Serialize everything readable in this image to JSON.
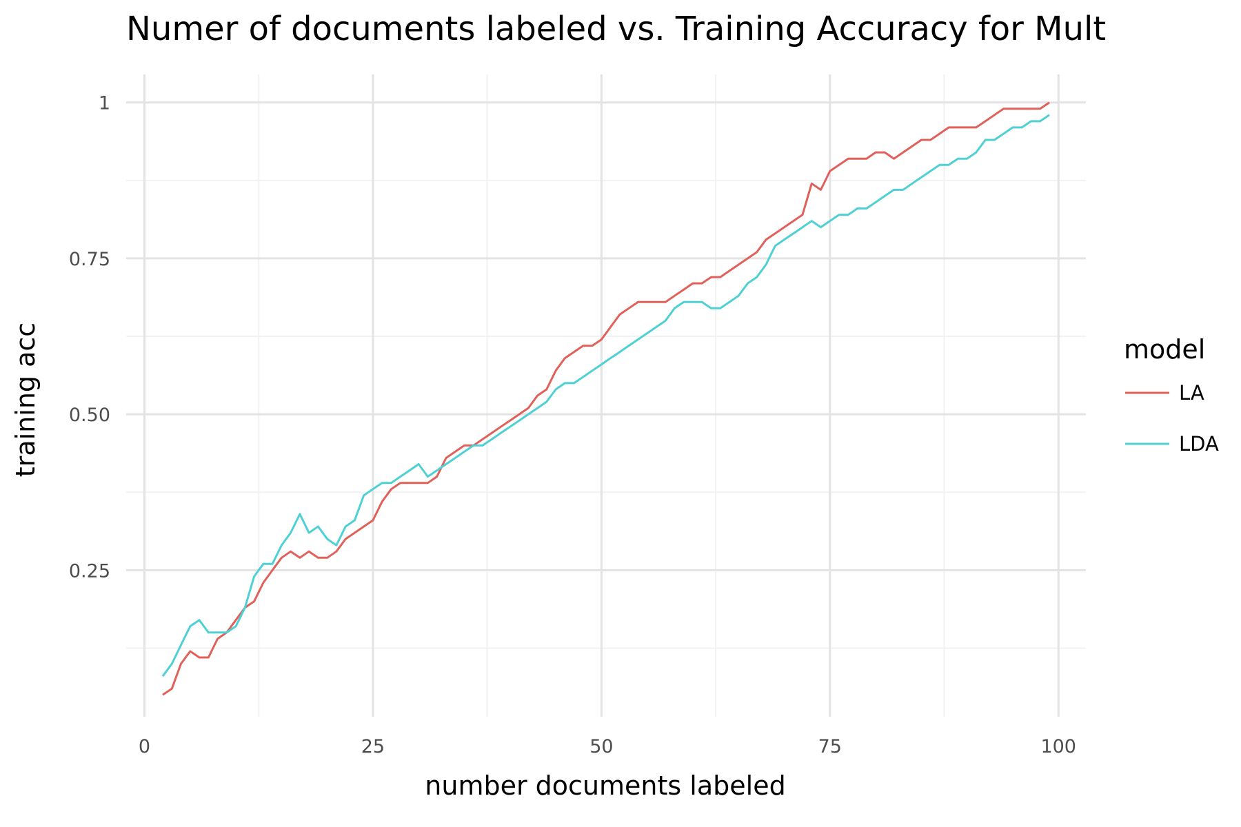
{
  "chart_data": {
    "type": "line",
    "title": "Numer of documents labeled vs. Training Accuracy for Mult",
    "xlabel": "number documents labeled",
    "ylabel": "training acc",
    "xlim": [
      -2,
      103
    ],
    "ylim": [
      0.015,
      1.045
    ],
    "x_major_ticks": [
      0,
      25,
      50,
      75,
      100
    ],
    "x_minor_ticks": [
      12.5,
      37.5,
      62.5,
      87.5
    ],
    "x_tick_labels": [
      "0",
      "25",
      "50",
      "75",
      "100"
    ],
    "y_major_ticks": [
      0.25,
      0.5,
      0.75,
      1
    ],
    "y_minor_ticks": [
      0.125,
      0.375,
      0.625,
      0.875
    ],
    "y_tick_labels": [
      "0.25",
      "0.50",
      "0.75",
      "1"
    ],
    "grid": true,
    "legend": {
      "title": "model",
      "position": "right"
    },
    "x": [
      2,
      3,
      4,
      5,
      6,
      7,
      8,
      9,
      10,
      11,
      12,
      13,
      14,
      15,
      16,
      17,
      18,
      19,
      20,
      21,
      22,
      23,
      24,
      25,
      26,
      27,
      28,
      29,
      30,
      31,
      32,
      33,
      34,
      35,
      36,
      37,
      38,
      39,
      40,
      41,
      42,
      43,
      44,
      45,
      46,
      47,
      48,
      49,
      50,
      51,
      52,
      53,
      54,
      55,
      56,
      57,
      58,
      59,
      60,
      61,
      62,
      63,
      64,
      65,
      66,
      67,
      68,
      69,
      70,
      71,
      72,
      73,
      74,
      75,
      76,
      77,
      78,
      79,
      80,
      81,
      82,
      83,
      84,
      85,
      86,
      87,
      88,
      89,
      90,
      91,
      92,
      93,
      94,
      95,
      96,
      97,
      98,
      99
    ],
    "series": [
      {
        "name": "LA",
        "color": "#e0605a",
        "values": [
          0.05,
          0.06,
          0.1,
          0.12,
          0.11,
          0.11,
          0.14,
          0.15,
          0.17,
          0.19,
          0.2,
          0.23,
          0.25,
          0.27,
          0.28,
          0.27,
          0.28,
          0.27,
          0.27,
          0.28,
          0.3,
          0.31,
          0.32,
          0.33,
          0.36,
          0.38,
          0.39,
          0.39,
          0.39,
          0.39,
          0.4,
          0.43,
          0.44,
          0.45,
          0.45,
          0.46,
          0.47,
          0.48,
          0.49,
          0.5,
          0.51,
          0.53,
          0.54,
          0.57,
          0.59,
          0.6,
          0.61,
          0.61,
          0.62,
          0.64,
          0.66,
          0.67,
          0.68,
          0.68,
          0.68,
          0.68,
          0.69,
          0.7,
          0.71,
          0.71,
          0.72,
          0.72,
          0.73,
          0.74,
          0.75,
          0.76,
          0.78,
          0.79,
          0.8,
          0.81,
          0.82,
          0.87,
          0.86,
          0.89,
          0.9,
          0.91,
          0.91,
          0.91,
          0.92,
          0.92,
          0.91,
          0.92,
          0.93,
          0.94,
          0.94,
          0.95,
          0.96,
          0.96,
          0.96,
          0.96,
          0.97,
          0.98,
          0.99,
          0.99,
          0.99,
          0.99,
          0.99,
          1.0
        ]
      },
      {
        "name": "LDA",
        "color": "#4fd0d4",
        "values": [
          0.08,
          0.1,
          0.13,
          0.16,
          0.17,
          0.15,
          0.15,
          0.15,
          0.16,
          0.19,
          0.24,
          0.26,
          0.26,
          0.29,
          0.31,
          0.34,
          0.31,
          0.32,
          0.3,
          0.29,
          0.32,
          0.33,
          0.37,
          0.38,
          0.39,
          0.39,
          0.4,
          0.41,
          0.42,
          0.4,
          0.41,
          0.42,
          0.43,
          0.44,
          0.45,
          0.45,
          0.46,
          0.47,
          0.48,
          0.49,
          0.5,
          0.51,
          0.52,
          0.54,
          0.55,
          0.55,
          0.56,
          0.57,
          0.58,
          0.59,
          0.6,
          0.61,
          0.62,
          0.63,
          0.64,
          0.65,
          0.67,
          0.68,
          0.68,
          0.68,
          0.67,
          0.67,
          0.68,
          0.69,
          0.71,
          0.72,
          0.74,
          0.77,
          0.78,
          0.79,
          0.8,
          0.81,
          0.8,
          0.81,
          0.82,
          0.82,
          0.83,
          0.83,
          0.84,
          0.85,
          0.86,
          0.86,
          0.87,
          0.88,
          0.89,
          0.9,
          0.9,
          0.91,
          0.91,
          0.92,
          0.94,
          0.94,
          0.95,
          0.96,
          0.96,
          0.97,
          0.97,
          0.98
        ]
      }
    ]
  }
}
